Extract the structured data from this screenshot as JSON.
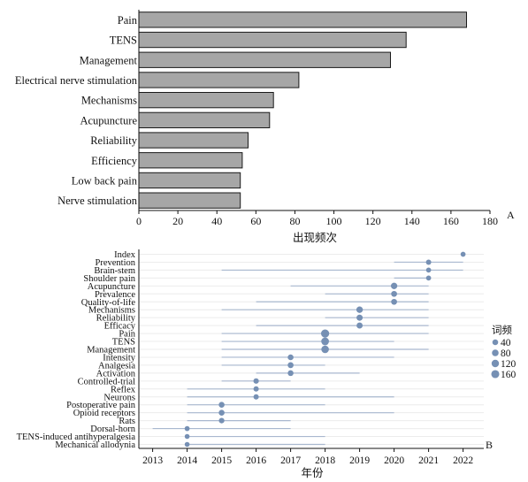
{
  "chart_data": [
    {
      "panel": "A",
      "type": "bar",
      "orientation": "horizontal",
      "categories": [
        "Pain",
        "TENS",
        "Management",
        "Electrical nerve stimulation",
        "Mechanisms",
        "Acupuncture",
        "Reliability",
        "Efficiency",
        "Low back pain",
        "Nerve stimulation"
      ],
      "values": [
        168,
        137,
        129,
        82,
        69,
        67,
        56,
        53,
        52,
        52
      ],
      "xlabel": "出现频次",
      "xlim": [
        0,
        180
      ],
      "xticks": [
        0,
        20,
        40,
        60,
        80,
        100,
        120,
        140,
        160,
        180
      ],
      "bar_color": "#a6a6a6",
      "grid": false
    },
    {
      "panel": "B",
      "type": "scatter",
      "description_type": "keyword timeline",
      "xlabel": "年份",
      "xlim": [
        2012.6,
        2022.6
      ],
      "xticks": [
        2013,
        2014,
        2015,
        2016,
        2017,
        2018,
        2019,
        2020,
        2021,
        2022
      ],
      "legend": {
        "title": "词频",
        "values": [
          40,
          80,
          120,
          160
        ],
        "placement": "right"
      },
      "marker_color": "#7690b4",
      "line_color": "#a9b8cf",
      "points": [
        {
          "keyword": "Index",
          "year": 2022,
          "freq": 18,
          "start": 2022,
          "end": 2022
        },
        {
          "keyword": "Prevention",
          "year": 2021,
          "freq": 25,
          "start": 2020,
          "end": 2022
        },
        {
          "keyword": "Brain-stem",
          "year": 2021,
          "freq": 18,
          "start": 2015,
          "end": 2022
        },
        {
          "keyword": "Shoulder pain",
          "year": 2021,
          "freq": 18,
          "start": 2020,
          "end": 2021
        },
        {
          "keyword": "Acupuncture",
          "year": 2020,
          "freq": 67,
          "start": 2017,
          "end": 2021
        },
        {
          "keyword": "Prevalence",
          "year": 2020,
          "freq": 45,
          "start": 2018,
          "end": 2021
        },
        {
          "keyword": "Quality-of-life",
          "year": 2020,
          "freq": 45,
          "start": 2016,
          "end": 2021
        },
        {
          "keyword": "Mechanisms",
          "year": 2019,
          "freq": 69,
          "start": 2015,
          "end": 2021
        },
        {
          "keyword": "Reliability",
          "year": 2019,
          "freq": 56,
          "start": 2018,
          "end": 2021
        },
        {
          "keyword": "Efficacy",
          "year": 2019,
          "freq": 53,
          "start": 2016,
          "end": 2021
        },
        {
          "keyword": "Pain",
          "year": 2018,
          "freq": 168,
          "start": 2015,
          "end": 2021
        },
        {
          "keyword": "TENS",
          "year": 2018,
          "freq": 137,
          "start": 2015,
          "end": 2020
        },
        {
          "keyword": "Management",
          "year": 2018,
          "freq": 129,
          "start": 2015,
          "end": 2021
        },
        {
          "keyword": "Intensity",
          "year": 2017,
          "freq": 40,
          "start": 2015,
          "end": 2020
        },
        {
          "keyword": "Analgesia",
          "year": 2017,
          "freq": 45,
          "start": 2015,
          "end": 2018
        },
        {
          "keyword": "Activation",
          "year": 2017,
          "freq": 40,
          "start": 2016,
          "end": 2019
        },
        {
          "keyword": "Controlled-trial",
          "year": 2016,
          "freq": 30,
          "start": 2015,
          "end": 2017
        },
        {
          "keyword": "Reflex",
          "year": 2016,
          "freq": 25,
          "start": 2014,
          "end": 2018
        },
        {
          "keyword": "Neurons",
          "year": 2016,
          "freq": 25,
          "start": 2014,
          "end": 2020
        },
        {
          "keyword": "Postoperative pain",
          "year": 2015,
          "freq": 40,
          "start": 2014,
          "end": 2018
        },
        {
          "keyword": "Opioid receptors",
          "year": 2015,
          "freq": 40,
          "start": 2014,
          "end": 2020
        },
        {
          "keyword": "Rats",
          "year": 2015,
          "freq": 30,
          "start": 2014,
          "end": 2017
        },
        {
          "keyword": "Dorsal-horn",
          "year": 2014,
          "freq": 18,
          "start": 2013,
          "end": 2017
        },
        {
          "keyword": "TENS-induced antihyperalgesia",
          "year": 2014,
          "freq": 15,
          "start": 2014,
          "end": 2018
        },
        {
          "keyword": "Mechanical allodynia",
          "year": 2014,
          "freq": 15,
          "start": 2014,
          "end": 2018
        }
      ]
    }
  ]
}
